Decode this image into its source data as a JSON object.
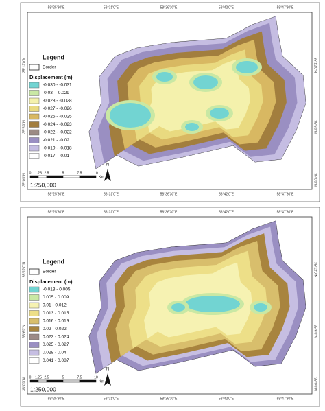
{
  "panels": [
    {
      "top_labels": [
        "58°25'30\"E",
        "58°31'0\"E",
        "58°36'30\"E",
        "58°42'0\"E",
        "58°47'30\"E"
      ],
      "bottom_labels": [
        "58°25'30\"E",
        "58°31'0\"E",
        "58°36'30\"E",
        "58°42'0\"E",
        "58°47'30\"E"
      ],
      "left_labels": [
        "35°12'0\"N",
        "35°6'0\"N",
        "35°0'0\"N"
      ],
      "right_labels": [
        "35°12'0\"N",
        "35°6'0\"N",
        "35°0'0\"N"
      ],
      "legend": {
        "title": "Legend",
        "border_label": "Border",
        "subtitle": "Displacement (m)",
        "classes": [
          {
            "label": "-0.030 - -0.031",
            "color": "#72d4d2"
          },
          {
            "label": "-0.03 - -0.029",
            "color": "#c9e8a4"
          },
          {
            "label": "-0.028 - -0.028",
            "color": "#f4f1ac"
          },
          {
            "label": "-0.027 - -0.026",
            "color": "#e9da80"
          },
          {
            "label": "-0.025 - -0.025",
            "color": "#d8b862"
          },
          {
            "label": "-0.024 - -0.023",
            "color": "#a27e3e"
          },
          {
            "label": "-0.022 - -0.022",
            "color": "#9c8b84"
          },
          {
            "label": "-0.021 - -0.02",
            "color": "#9a8fc2"
          },
          {
            "label": "-0.019 - -0.018",
            "color": "#c5bde2"
          },
          {
            "label": "-0.017 - -0.01",
            "color": "#ffffff"
          }
        ]
      },
      "scale": {
        "ticks": [
          "0",
          "1.25",
          "2.5",
          "5",
          "7.5",
          "10"
        ],
        "unit": "Km",
        "ratio": "1:250,000"
      },
      "north": "N"
    },
    {
      "top_labels": [
        "58°25'30\"E",
        "58°31'0\"E",
        "58°36'30\"E",
        "58°42'0\"E",
        "58°47'30\"E"
      ],
      "bottom_labels": [
        "58°25'30\"E",
        "58°31'0\"E",
        "58°36'30\"E",
        "58°42'0\"E",
        "58°47'30\"E"
      ],
      "left_labels": [
        "35°12'0\"N",
        "35°6'0\"N",
        "35°0'0\"N"
      ],
      "right_labels": [
        "35°12'0\"N",
        "35°6'0\"N",
        "35°0'0\"N"
      ],
      "legend": {
        "title": "Legend",
        "border_label": "Border",
        "subtitle": "Displacement (m)",
        "classes": [
          {
            "label": "-0.013 - 0.005",
            "color": "#72d4d2"
          },
          {
            "label": "0.005 - 0.009",
            "color": "#c9e8a4"
          },
          {
            "label": "0.01 - 0.012",
            "color": "#f6f2b2"
          },
          {
            "label": "0.013 - 0.015",
            "color": "#eddf88"
          },
          {
            "label": "0.016 - 0.019",
            "color": "#d8be6c"
          },
          {
            "label": "0.02 - 0.022",
            "color": "#a8843e"
          },
          {
            "label": "0.023 - 0.024",
            "color": "#9c8a86"
          },
          {
            "label": "0.025 - 0.027",
            "color": "#9a8fc2"
          },
          {
            "label": "0.028 - 0.04",
            "color": "#c6bee2"
          },
          {
            "label": "0.041 - 0.087",
            "color": "#ffffff"
          }
        ]
      },
      "scale": {
        "ticks": [
          "0",
          "1.25",
          "2.5",
          "5",
          "7.5",
          "10"
        ],
        "unit": "Km",
        "ratio": "1:250,000"
      },
      "north": "N"
    }
  ]
}
